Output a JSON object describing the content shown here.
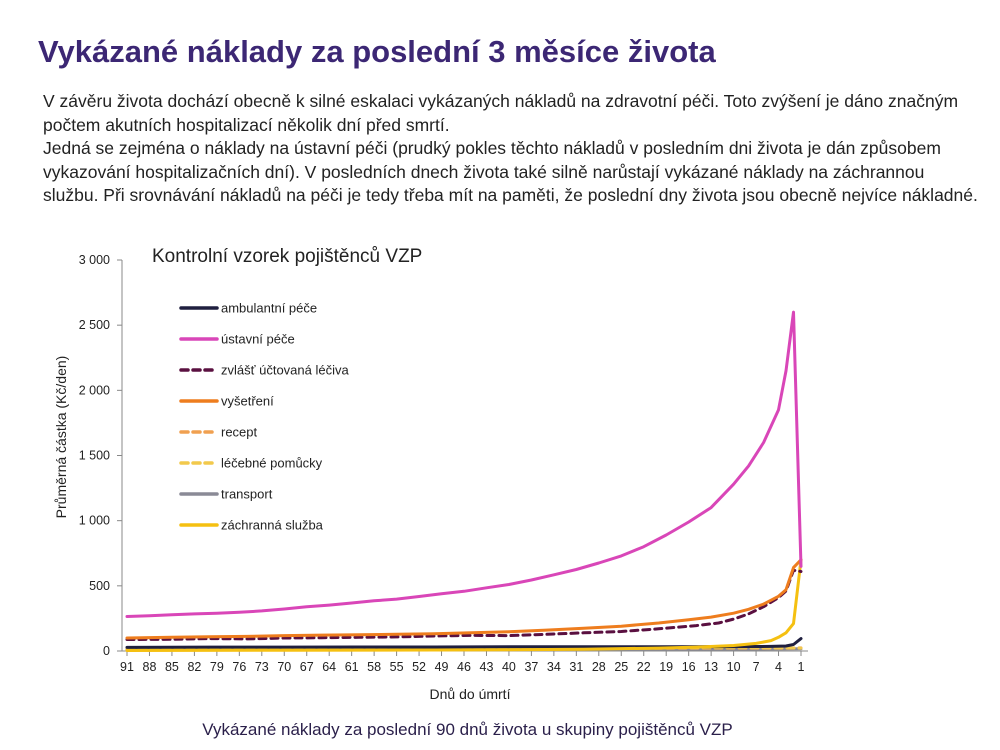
{
  "slide": {
    "title": "Vykázané náklady za poslední 3 měsíce života",
    "paragraphs": [
      "V závěru života dochází obecně k silné eskalaci vykázaných nákladů na zdravotní péči. Toto zvýšení je dáno značným počtem akutních hospitalizací několik dní před smrtí.",
      "Jedná se zejména o náklady na ústavní péči (prudký pokles těchto nákladů v posledním dni života je dán způsobem vykazování hospitalizačních dní). V posledních dnech života také silně narůstají vykázané náklady na záchrannou službu. Při srovnávání nákladů na péči je tedy třeba mít na paměti, že poslední dny života jsou obecně nejvíce nákladné."
    ],
    "caption": "Vykázané náklady za poslední 90 dnů života u skupiny pojištěnců VZP"
  },
  "chart_data": {
    "type": "line",
    "title": "Kontrolní vzorek pojištěnců VZP",
    "xlabel": "Dnů do úmrtí",
    "ylabel": "Průměrná částka (Kč/den)",
    "xlim": [
      91,
      1
    ],
    "ylim": [
      0,
      3000
    ],
    "yticks": [
      0,
      500,
      1000,
      1500,
      2000,
      2500,
      3000
    ],
    "ytick_labels": [
      "0",
      "500",
      "1 000",
      "1 500",
      "2 000",
      "2 500",
      "3 000"
    ],
    "xticks": [
      91,
      88,
      85,
      82,
      79,
      76,
      73,
      70,
      67,
      64,
      61,
      58,
      55,
      52,
      49,
      46,
      43,
      40,
      37,
      34,
      31,
      28,
      25,
      22,
      19,
      16,
      13,
      10,
      7,
      4,
      1
    ],
    "grid": false,
    "legend_position": "upper-left-inside",
    "series": [
      {
        "name": "ambulantní péče",
        "color": "#1f1f3f",
        "dash": "solid",
        "points": [
          [
            91,
            28
          ],
          [
            80,
            30
          ],
          [
            70,
            30
          ],
          [
            60,
            31
          ],
          [
            50,
            31
          ],
          [
            40,
            32
          ],
          [
            30,
            32
          ],
          [
            20,
            33
          ],
          [
            10,
            34
          ],
          [
            5,
            35
          ],
          [
            3,
            38
          ],
          [
            2,
            50
          ],
          [
            1,
            95
          ]
        ]
      },
      {
        "name": "ústavní péče",
        "color": "#d946b8",
        "dash": "solid",
        "points": [
          [
            91,
            265
          ],
          [
            88,
            270
          ],
          [
            85,
            278
          ],
          [
            82,
            285
          ],
          [
            79,
            290
          ],
          [
            76,
            297
          ],
          [
            73,
            308
          ],
          [
            70,
            322
          ],
          [
            67,
            340
          ],
          [
            64,
            352
          ],
          [
            61,
            368
          ],
          [
            58,
            385
          ],
          [
            55,
            398
          ],
          [
            52,
            418
          ],
          [
            49,
            440
          ],
          [
            46,
            458
          ],
          [
            43,
            485
          ],
          [
            40,
            510
          ],
          [
            37,
            545
          ],
          [
            34,
            585
          ],
          [
            31,
            625
          ],
          [
            28,
            675
          ],
          [
            25,
            730
          ],
          [
            22,
            800
          ],
          [
            19,
            890
          ],
          [
            16,
            990
          ],
          [
            13,
            1100
          ],
          [
            10,
            1280
          ],
          [
            8,
            1420
          ],
          [
            6,
            1600
          ],
          [
            4,
            1850
          ],
          [
            3,
            2150
          ],
          [
            2,
            2600
          ],
          [
            1,
            650
          ]
        ]
      },
      {
        "name": "zvlášť účtovaná léčiva",
        "color": "#5a1040",
        "dash": "dashed",
        "points": [
          [
            91,
            88
          ],
          [
            85,
            90
          ],
          [
            80,
            95
          ],
          [
            75,
            93
          ],
          [
            70,
            100
          ],
          [
            65,
            102
          ],
          [
            60,
            105
          ],
          [
            55,
            108
          ],
          [
            50,
            115
          ],
          [
            45,
            120
          ],
          [
            40,
            118
          ],
          [
            35,
            128
          ],
          [
            30,
            140
          ],
          [
            25,
            150
          ],
          [
            20,
            170
          ],
          [
            15,
            195
          ],
          [
            12,
            215
          ],
          [
            10,
            245
          ],
          [
            8,
            285
          ],
          [
            6,
            340
          ],
          [
            4,
            410
          ],
          [
            3,
            460
          ],
          [
            2,
            620
          ],
          [
            1,
            610
          ]
        ]
      },
      {
        "name": "vyšetření",
        "color": "#ee7d1e",
        "dash": "solid",
        "points": [
          [
            91,
            100
          ],
          [
            85,
            105
          ],
          [
            80,
            110
          ],
          [
            75,
            112
          ],
          [
            70,
            118
          ],
          [
            65,
            122
          ],
          [
            60,
            125
          ],
          [
            55,
            128
          ],
          [
            50,
            132
          ],
          [
            45,
            140
          ],
          [
            40,
            148
          ],
          [
            35,
            160
          ],
          [
            30,
            175
          ],
          [
            25,
            190
          ],
          [
            20,
            215
          ],
          [
            16,
            240
          ],
          [
            13,
            260
          ],
          [
            10,
            290
          ],
          [
            8,
            320
          ],
          [
            6,
            360
          ],
          [
            4,
            420
          ],
          [
            3,
            470
          ],
          [
            2,
            640
          ],
          [
            1,
            700
          ]
        ]
      },
      {
        "name": "recept",
        "color": "#f0a050",
        "dash": "dashed",
        "points": [
          [
            91,
            18
          ],
          [
            70,
            19
          ],
          [
            50,
            20
          ],
          [
            30,
            21
          ],
          [
            10,
            22
          ],
          [
            3,
            22
          ],
          [
            1,
            24
          ]
        ]
      },
      {
        "name": "léčebné pomůcky",
        "color": "#f2c94c",
        "dash": "dashed",
        "points": [
          [
            91,
            22
          ],
          [
            70,
            23
          ],
          [
            50,
            24
          ],
          [
            30,
            25
          ],
          [
            10,
            25
          ],
          [
            3,
            24
          ],
          [
            1,
            22
          ]
        ]
      },
      {
        "name": "transport",
        "color": "#8a8a96",
        "dash": "solid",
        "points": [
          [
            91,
            12
          ],
          [
            70,
            12
          ],
          [
            50,
            13
          ],
          [
            30,
            14
          ],
          [
            10,
            15
          ],
          [
            3,
            16
          ],
          [
            1,
            18
          ]
        ]
      },
      {
        "name": "záchranná služba",
        "color": "#f5c011",
        "dash": "solid",
        "points": [
          [
            91,
            4
          ],
          [
            70,
            6
          ],
          [
            50,
            8
          ],
          [
            40,
            10
          ],
          [
            30,
            14
          ],
          [
            20,
            22
          ],
          [
            15,
            30
          ],
          [
            10,
            42
          ],
          [
            7,
            58
          ],
          [
            5,
            80
          ],
          [
            4,
            105
          ],
          [
            3,
            140
          ],
          [
            2,
            210
          ],
          [
            1,
            700
          ]
        ]
      }
    ]
  }
}
